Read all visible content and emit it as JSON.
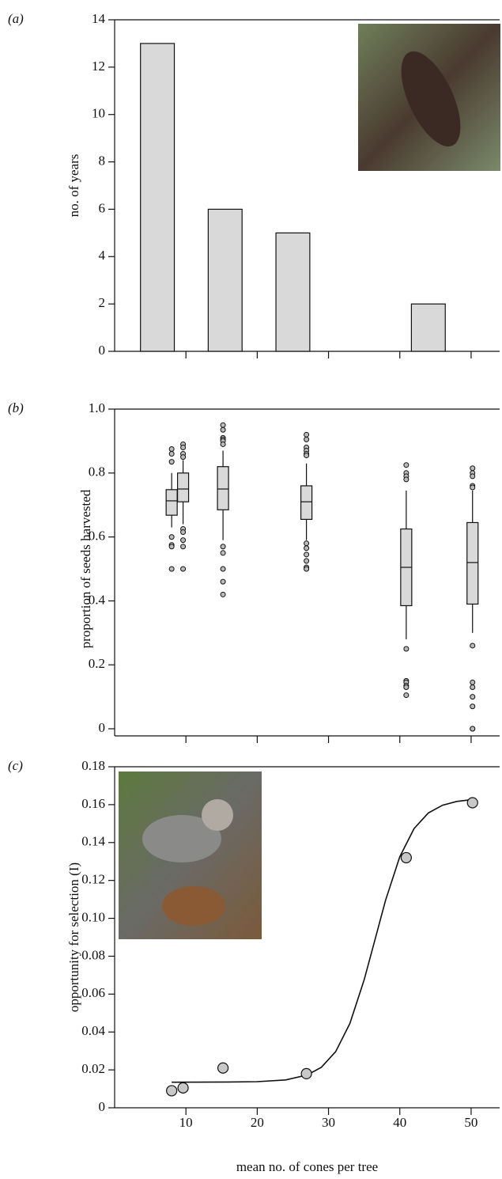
{
  "chart_data": [
    {
      "type": "bar",
      "panel_label": "(a)",
      "ylabel": "no. of years",
      "x": [
        6,
        15.5,
        25,
        34.5,
        44
      ],
      "values": [
        13,
        6,
        5,
        0,
        2
      ],
      "color": "#d9d9d9",
      "xlim": [
        0,
        54
      ],
      "xticks": [
        10,
        20,
        30,
        40,
        50
      ],
      "xtick_labels": false,
      "ylim": [
        0,
        14
      ],
      "yticks": [
        0,
        2,
        4,
        6,
        8,
        10,
        12,
        14
      ]
    },
    {
      "type": "box",
      "panel_label": "(b)",
      "ylabel": "proportion of seeds harvested",
      "color": "#d9d9d9",
      "boxes": [
        {
          "x": 8,
          "whisker_low": 0.63,
          "q1": 0.668,
          "median": 0.713,
          "q3": 0.748,
          "whisker_high": 0.8,
          "outliers": [
            0.875,
            0.86,
            0.835,
            0.6,
            0.575,
            0.57,
            0.5
          ]
        },
        {
          "x": 9.6,
          "whisker_low": 0.64,
          "q1": 0.71,
          "median": 0.75,
          "q3": 0.8,
          "whisker_high": 0.84,
          "outliers": [
            0.89,
            0.88,
            0.86,
            0.85,
            0.625,
            0.615,
            0.59,
            0.57,
            0.5
          ]
        },
        {
          "x": 15.2,
          "whisker_low": 0.59,
          "q1": 0.685,
          "median": 0.75,
          "q3": 0.82,
          "whisker_high": 0.87,
          "outliers": [
            0.95,
            0.935,
            0.91,
            0.905,
            0.9,
            0.89,
            0.57,
            0.55,
            0.5,
            0.46,
            0.42
          ]
        },
        {
          "x": 26.9,
          "whisker_low": 0.59,
          "q1": 0.655,
          "median": 0.71,
          "q3": 0.76,
          "whisker_high": 0.83,
          "outliers": [
            0.92,
            0.905,
            0.88,
            0.87,
            0.86,
            0.855,
            0.58,
            0.565,
            0.545,
            0.525,
            0.505,
            0.5
          ]
        },
        {
          "x": 40.9,
          "whisker_low": 0.28,
          "q1": 0.385,
          "median": 0.505,
          "q3": 0.625,
          "whisker_high": 0.745,
          "outliers": [
            0.825,
            0.8,
            0.79,
            0.78,
            0.25,
            0.15,
            0.145,
            0.135,
            0.13,
            0.105
          ]
        },
        {
          "x": 50.2,
          "whisker_low": 0.3,
          "q1": 0.39,
          "median": 0.52,
          "q3": 0.645,
          "whisker_high": 0.745,
          "outliers": [
            0.815,
            0.8,
            0.79,
            0.76,
            0.755,
            0.26,
            0.145,
            0.13,
            0.1,
            0.07,
            0.0,
            0.0
          ]
        }
      ],
      "xlim": [
        0,
        54
      ],
      "xticks": [
        10,
        20,
        30,
        40,
        50
      ],
      "xtick_labels": false,
      "ylim": [
        0,
        1
      ],
      "yticks": [
        0,
        0.2,
        0.4,
        0.6,
        0.8,
        {
          "value": 1,
          "label": "1.0"
        }
      ]
    },
    {
      "type": "scatter",
      "panel_label": "(c)",
      "ylabel": "opportunity for selection (I)",
      "xlabel": "mean no. of cones per tree",
      "x": [
        8,
        9.6,
        15.2,
        26.9,
        40.9,
        50.2
      ],
      "values": [
        0.009,
        0.0105,
        0.021,
        0.018,
        0.132,
        0.161
      ],
      "color": "#c8c8c8",
      "fit": {
        "x": [
          8,
          16,
          20,
          24,
          27,
          29,
          31,
          33,
          35,
          36.5,
          38,
          40,
          42,
          44,
          46,
          48,
          50.2
        ],
        "values": [
          0.0135,
          0.0136,
          0.0138,
          0.0147,
          0.0173,
          0.0214,
          0.0296,
          0.0445,
          0.0675,
          0.0885,
          0.1095,
          0.1325,
          0.1474,
          0.1556,
          0.1597,
          0.1617,
          0.1627
        ]
      },
      "xlim": [
        0,
        54
      ],
      "xticks": [
        10,
        20,
        30,
        40,
        50
      ],
      "xtick_labels": true,
      "ylim": [
        0,
        0.18
      ],
      "yticks": [
        0,
        0.02,
        0.04,
        0.06,
        0.08,
        {
          "value": 0.1,
          "label": "0.10"
        },
        0.12,
        0.14,
        0.16,
        0.18
      ]
    }
  ]
}
